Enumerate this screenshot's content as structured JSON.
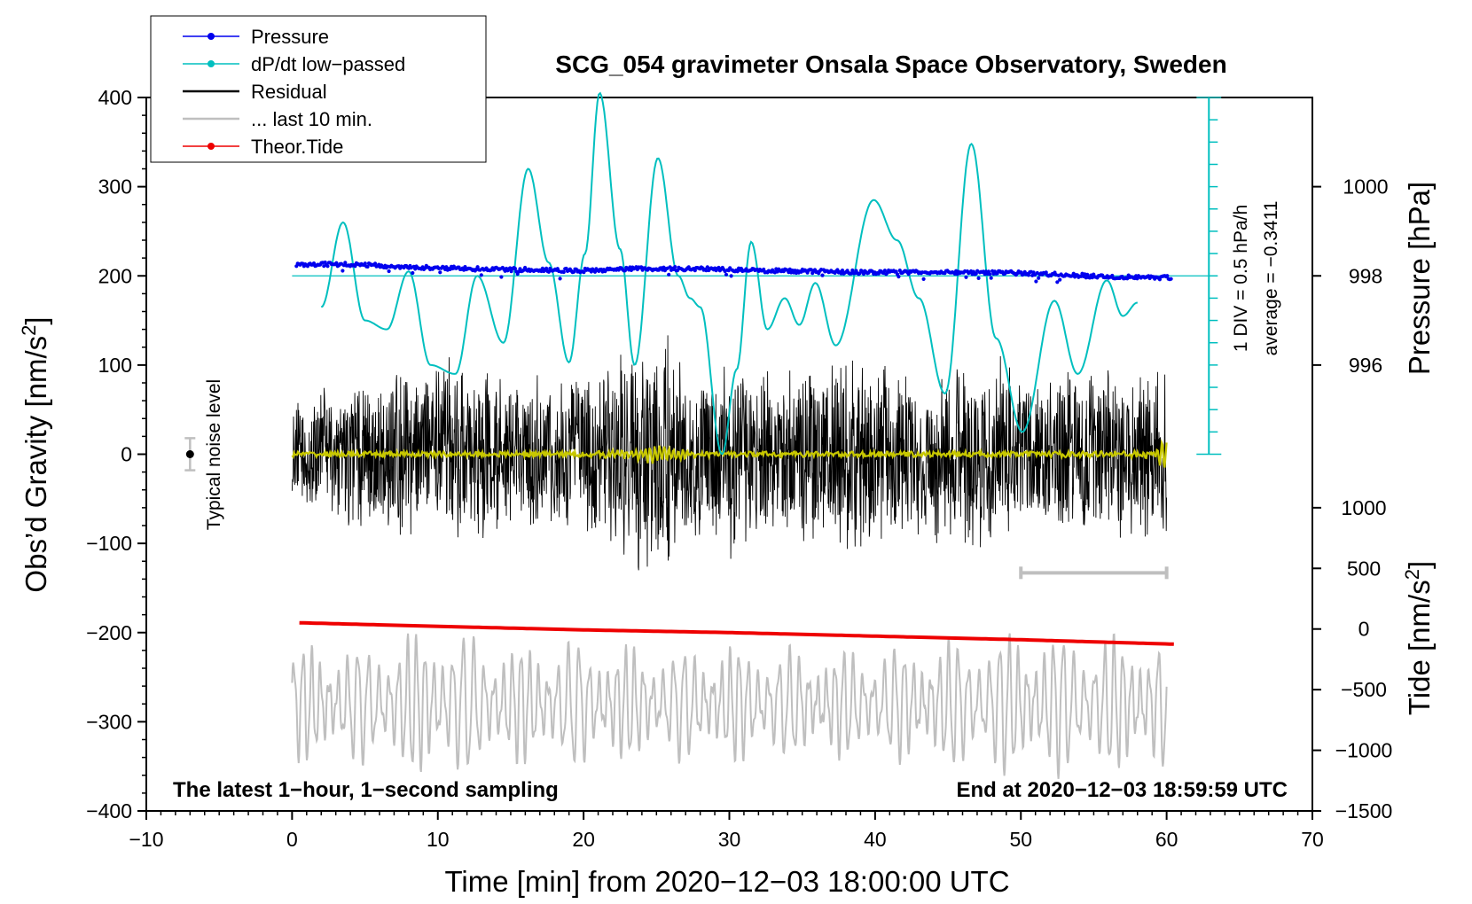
{
  "chart_data": {
    "type": "line",
    "title": "SCG_054 gravimeter Onsala Space Observatory, Sweden",
    "xlabel": "Time [min] from 2020−12−03 18:00:00 UTC",
    "xlim": [
      -10,
      70
    ],
    "x_ticks": [
      -10,
      0,
      10,
      20,
      30,
      40,
      50,
      60,
      70
    ],
    "x_tick_labels": [
      "−10",
      "0",
      "10",
      "20",
      "30",
      "40",
      "50",
      "60",
      "70"
    ],
    "left_axis": {
      "label_main": "Obs’d Gravity [nm/s",
      "label_sup": "2",
      "label_end": "]",
      "ylim": [
        -400,
        400
      ],
      "ticks": [
        -400,
        -300,
        -200,
        -100,
        0,
        100,
        200,
        300,
        400
      ],
      "tick_labels": [
        "−400",
        "−300",
        "−200",
        "−100",
        "0",
        "100",
        "200",
        "300",
        "400"
      ]
    },
    "pressure_axis": {
      "label": "Pressure [hPa]",
      "ticks": [
        996,
        998,
        1000
      ],
      "tick_labels": [
        "996",
        "998",
        "1000"
      ],
      "gravity_equiv": [
        100,
        200,
        300
      ]
    },
    "tide_axis": {
      "label_main": "Tide [nm/s",
      "label_sup": "2",
      "label_end": "]",
      "ticks": [
        -1500,
        -1000,
        -500,
        0,
        500,
        1000
      ],
      "tick_labels": [
        "−1500",
        "−1000",
        "−500",
        "0",
        "500",
        "1000"
      ],
      "gravity_equiv": [
        -400,
        -332,
        -264,
        -196,
        -128,
        -60
      ]
    },
    "dpdt_scale": {
      "label_div": "1 DIV = 0.5 hPa/h",
      "label_avg": "average = −0.3411",
      "x_min": 62.9,
      "y_range": [
        0,
        400
      ],
      "divisions": 16
    },
    "noise_label": "Typical noise level",
    "noise_bar": {
      "x": -7,
      "center": 0,
      "half_range": 18
    },
    "window_bar": {
      "from": 50,
      "to": 60,
      "y": -133
    },
    "annotation_left": "The latest 1−hour, 1−second sampling",
    "annotation_right": "End at 2020−12−03 18:59:59 UTC",
    "legend": [
      {
        "label": "Pressure",
        "color": "#0000ee",
        "style": "line-dot"
      },
      {
        "label": "dP/dt low−passed",
        "color": "#00bfbf",
        "style": "line-dot"
      },
      {
        "label": "Residual",
        "color": "#000000",
        "style": "line"
      },
      {
        "label": "... last 10 min.",
        "color": "#bfbfbf",
        "style": "line"
      },
      {
        "label": "Theor.Tide",
        "color": "#ee0000",
        "style": "line-dot"
      }
    ],
    "series": [
      {
        "name": "Pressure",
        "color": "#0000ee",
        "unit": "gravity-axis equivalent (hPa mapped: 998 hPa = 200)",
        "x": [
          0.3,
          4,
          8,
          12,
          16,
          20,
          24,
          28,
          32,
          36,
          40,
          44,
          48,
          52,
          56,
          60.3
        ],
        "values": [
          213,
          213,
          210,
          208,
          207,
          206,
          208,
          208,
          206,
          205,
          204,
          204,
          204,
          202,
          199,
          198
        ]
      },
      {
        "name": "dP/dt low−passed",
        "color": "#00bfbf",
        "unit": "gravity-axis equivalent",
        "x": [
          2,
          3.5,
          5,
          6.5,
          8,
          9.5,
          11.2,
          12.7,
          14.5,
          16.2,
          17.6,
          19,
          20.1,
          21.1,
          22.5,
          23.5,
          25.1,
          26.5,
          27.3,
          28,
          29.5,
          30.5,
          31.5,
          32.6,
          33.8,
          34.8,
          35.9,
          37.3,
          39.9,
          41.5,
          43,
          44.8,
          46.6,
          48.3,
          50.1,
          52.3,
          53.9,
          55.9,
          57,
          58
        ],
        "values": [
          165,
          260,
          150,
          140,
          205,
          100,
          90,
          200,
          125,
          320,
          215,
          103,
          225,
          405,
          230,
          100,
          332,
          200,
          175,
          165,
          0,
          95,
          238,
          140,
          175,
          145,
          192,
          122,
          285,
          240,
          175,
          68,
          348,
          130,
          25,
          172,
          90,
          195,
          155,
          170
        ]
      },
      {
        "name": "Residual",
        "color": "#000000",
        "x": [
          0,
          1,
          2,
          3,
          4,
          5,
          6,
          7,
          8,
          9,
          10,
          11,
          12,
          13,
          14,
          15,
          16,
          17,
          18,
          19,
          20,
          21,
          22,
          23,
          24,
          25,
          26,
          27,
          28,
          29,
          30,
          31,
          32,
          33,
          34,
          35,
          36,
          37,
          38,
          39,
          40,
          41,
          42,
          43,
          44,
          45,
          46,
          47,
          48,
          49,
          50,
          51,
          52,
          53,
          54,
          55,
          56,
          57,
          58,
          59,
          60
        ],
        "envelope": [
          55,
          70,
          80,
          70,
          95,
          85,
          80,
          100,
          110,
          100,
          125,
          120,
          105,
          100,
          95,
          85,
          80,
          100,
          85,
          90,
          100,
          110,
          115,
          125,
          140,
          150,
          140,
          120,
          105,
          100,
          120,
          115,
          105,
          110,
          100,
          105,
          110,
          105,
          115,
          115,
          110,
          110,
          100,
          95,
          105,
          110,
          120,
          110,
          120,
          110,
          100,
          85,
          90,
          95,
          100,
          100,
          105,
          95,
          100,
          110,
          105
        ]
      },
      {
        "name": "Smoothed residual",
        "color": "#c8c800",
        "x": [
          0,
          10,
          20,
          23,
          24,
          25,
          26,
          27,
          28,
          30,
          40,
          50,
          59,
          59.5,
          60
        ],
        "values": [
          0,
          0,
          0,
          3,
          6,
          9,
          7,
          4,
          2,
          0,
          0,
          0,
          2,
          10,
          15
        ]
      },
      {
        "name": "... last 10 min.",
        "color": "#bfbfbf",
        "unit": "gravity-axis equivalent",
        "x": [
          0,
          5,
          10,
          15,
          20,
          25,
          30,
          35,
          40,
          45,
          50,
          55,
          60
        ],
        "values": [
          -280,
          -280,
          -280,
          -280,
          -280,
          -280,
          -280,
          -280,
          -280,
          -280,
          -280,
          -280,
          -280
        ],
        "amplitude": [
          60,
          60,
          80,
          60,
          65,
          55,
          60,
          55,
          55,
          65,
          75,
          70,
          70
        ]
      },
      {
        "name": "Theor.Tide",
        "color": "#ee0000",
        "unit": "gravity-axis equivalent",
        "x": [
          0.5,
          10,
          20,
          30,
          40,
          50,
          60.5
        ],
        "values": [
          -189,
          -193,
          -197,
          -200,
          -204,
          -208,
          -213
        ]
      }
    ]
  }
}
